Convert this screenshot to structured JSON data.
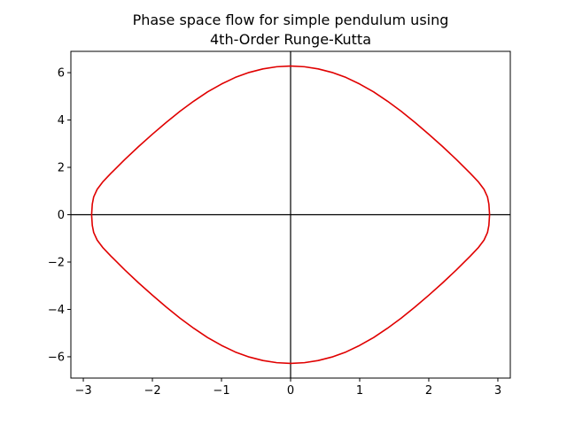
{
  "chart_data": {
    "type": "line",
    "title": "Phase space flow for simple pendulum using",
    "subtitle": "4th-Order Runge-Kutta",
    "xlabel": "",
    "ylabel": "",
    "xlim": [
      -3.18,
      3.18
    ],
    "ylim": [
      -6.9,
      6.9
    ],
    "x_ticks": [
      -3,
      -2,
      -1,
      0,
      1,
      2,
      3
    ],
    "x_tick_labels": [
      "−3",
      "−2",
      "−1",
      "0",
      "1",
      "2",
      "3"
    ],
    "y_ticks": [
      -6,
      -4,
      -2,
      0,
      2,
      4,
      6
    ],
    "y_tick_labels": [
      "−6",
      "−4",
      "−2",
      "0",
      "2",
      "4",
      "6"
    ],
    "grid": false,
    "axis_lines_through_origin": true,
    "series": [
      {
        "color": "#e00000",
        "x": [
          -2.88,
          -2.87,
          -2.85,
          -2.8,
          -2.72,
          -2.6,
          -2.4,
          -2.2,
          -2.0,
          -1.8,
          -1.6,
          -1.4,
          -1.2,
          -1.0,
          -0.8,
          -0.6,
          -0.4,
          -0.2,
          0.0,
          0.2,
          0.4,
          0.6,
          0.8,
          1.0,
          1.2,
          1.4,
          1.6,
          1.8,
          2.0,
          2.2,
          2.4,
          2.6,
          2.72,
          2.8,
          2.85,
          2.87,
          2.88
        ],
        "y_upper": [
          0.0,
          0.45,
          0.75,
          1.07,
          1.38,
          1.75,
          2.33,
          2.88,
          3.4,
          3.9,
          4.37,
          4.8,
          5.19,
          5.52,
          5.8,
          6.01,
          6.16,
          6.25,
          6.28,
          6.25,
          6.16,
          6.01,
          5.8,
          5.52,
          5.19,
          4.8,
          4.37,
          3.9,
          3.4,
          2.88,
          2.33,
          1.75,
          1.38,
          1.07,
          0.75,
          0.45,
          0.0
        ],
        "y_lower": [
          0.0,
          -0.45,
          -0.75,
          -1.07,
          -1.38,
          -1.75,
          -2.33,
          -2.88,
          -3.4,
          -3.9,
          -4.37,
          -4.8,
          -5.19,
          -5.52,
          -5.8,
          -6.01,
          -6.16,
          -6.25,
          -6.28,
          -6.25,
          -6.16,
          -6.01,
          -5.8,
          -5.52,
          -5.19,
          -4.8,
          -4.37,
          -3.9,
          -3.4,
          -2.88,
          -2.33,
          -1.75,
          -1.38,
          -1.07,
          -0.75,
          -0.45,
          0.0
        ]
      }
    ]
  }
}
